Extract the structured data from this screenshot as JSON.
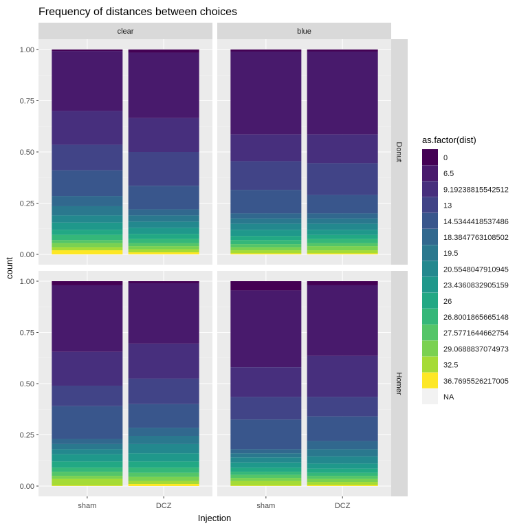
{
  "chart_data": {
    "type": "bar",
    "title": "Frequency of distances between choices",
    "xlabel": "Injection",
    "ylabel": "count",
    "ylim": [
      0,
      1
    ],
    "yticks": [
      "0.00",
      "0.25",
      "0.50",
      "0.75",
      "1.00"
    ],
    "categories": [
      "sham",
      "DCZ"
    ],
    "facet_cols": [
      "clear",
      "blue"
    ],
    "facet_rows": [
      "Donut",
      "Homer"
    ],
    "legend": {
      "title": "as.factor(dist)",
      "position": "right",
      "levels": [
        "0",
        "6.5",
        "9.19238815542512",
        "13",
        "14.5344418537486",
        "18.3847763108502",
        "19.5",
        "20.5548047910945",
        "23.4360832905159",
        "26",
        "26.8001865665148",
        "27.5771644662754",
        "29.0688837074973",
        "32.5",
        "36.7695526217005",
        "NA"
      ],
      "colors": [
        "#440154",
        "#481a6c",
        "#472f7d",
        "#414487",
        "#39568c",
        "#31688e",
        "#2a788e",
        "#23888e",
        "#1f988b",
        "#22a884",
        "#35b779",
        "#54c568",
        "#7ad151",
        "#a5db36",
        "#fde725",
        "#f2f2f2"
      ]
    },
    "panels": [
      {
        "col": "clear",
        "row": "Donut",
        "bars": [
          {
            "x": "sham",
            "cumulative_top": [
              1.0,
              0.993,
              0.7,
              0.535,
              0.41,
              0.285,
              0.235,
              0.19,
              0.155,
              0.12,
              0.095,
              0.07,
              0.055,
              0.035,
              0.02
            ]
          },
          {
            "x": "DCZ",
            "cumulative_top": [
              1.0,
              0.985,
              0.665,
              0.5,
              0.335,
              0.22,
              0.19,
              0.16,
              0.13,
              0.1,
              0.075,
              0.055,
              0.04,
              0.025,
              0.01
            ]
          }
        ]
      },
      {
        "col": "blue",
        "row": "Donut",
        "bars": [
          {
            "x": "sham",
            "cumulative_top": [
              1.0,
              0.99,
              0.585,
              0.455,
              0.315,
              0.2,
              0.175,
              0.15,
              0.12,
              0.09,
              0.07,
              0.05,
              0.035,
              0.02,
              0.005
            ]
          },
          {
            "x": "DCZ",
            "cumulative_top": [
              1.0,
              0.99,
              0.585,
              0.445,
              0.29,
              0.2,
              0.175,
              0.15,
              0.12,
              0.095,
              0.075,
              0.055,
              0.04,
              0.02,
              0.005
            ]
          }
        ]
      },
      {
        "col": "clear",
        "row": "Homer",
        "bars": [
          {
            "x": "sham",
            "cumulative_top": [
              1.0,
              0.98,
              0.655,
              0.49,
              0.39,
              0.23,
              0.205,
              0.18,
              0.155,
              0.12,
              0.09,
              0.07,
              0.05,
              0.035,
              0.002
            ]
          },
          {
            "x": "DCZ",
            "cumulative_top": [
              1.0,
              0.99,
              0.695,
              0.525,
              0.4,
              0.285,
              0.245,
              0.205,
              0.16,
              0.12,
              0.09,
              0.065,
              0.045,
              0.025,
              0.01
            ]
          }
        ]
      },
      {
        "col": "blue",
        "row": "Homer",
        "bars": [
          {
            "x": "sham",
            "cumulative_top": [
              1.0,
              0.955,
              0.58,
              0.435,
              0.325,
              0.18,
              0.16,
              0.14,
              0.115,
              0.09,
              0.07,
              0.055,
              0.04,
              0.025,
              0.002
            ]
          },
          {
            "x": "DCZ",
            "cumulative_top": [
              1.0,
              0.98,
              0.635,
              0.435,
              0.34,
              0.22,
              0.18,
              0.145,
              0.11,
              0.085,
              0.065,
              0.05,
              0.035,
              0.02,
              0.005
            ]
          }
        ]
      }
    ],
    "grid": true
  }
}
